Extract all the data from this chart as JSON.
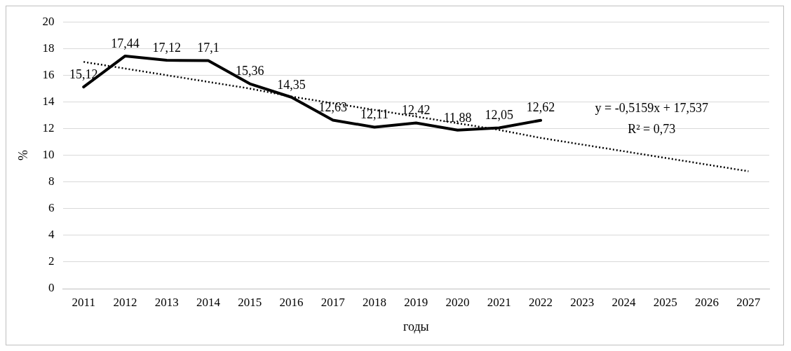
{
  "chart_data": {
    "type": "line",
    "categories": [
      "2011",
      "2012",
      "2013",
      "2014",
      "2015",
      "2016",
      "2017",
      "2018",
      "2019",
      "2020",
      "2021",
      "2022",
      "2023",
      "2024",
      "2025",
      "2026",
      "2027"
    ],
    "series": [
      {
        "color": "#000000",
        "values": [
          15.12,
          17.44,
          17.12,
          17.1,
          15.36,
          14.35,
          12.63,
          12.11,
          12.42,
          11.88,
          12.05,
          12.62,
          null,
          null,
          null,
          null,
          null
        ],
        "value_labels": [
          "15,12",
          "17,44",
          "17,12",
          "17,1",
          "15,36",
          "14,35",
          "12,63",
          "12,11",
          "12,42",
          "11,88",
          "12,05",
          "12,62",
          null,
          null,
          null,
          null,
          null
        ],
        "line_style": "solid"
      },
      {
        "type": "line",
        "color": "#000000",
        "values": [
          17.0,
          16.5,
          16.0,
          15.5,
          15.0,
          14.4,
          13.9,
          13.4,
          12.9,
          12.4,
          11.9,
          11.3,
          10.8,
          10.3,
          9.8,
          9.3,
          8.8
        ],
        "line_style": "dotted"
      }
    ],
    "xlabel": "годы",
    "ylabel": "%",
    "ylim": [
      0,
      20
    ],
    "yticks": [
      0,
      2,
      4,
      6,
      8,
      10,
      12,
      14,
      16,
      18,
      20
    ],
    "grid": "y",
    "legend": false,
    "marker": "none",
    "annotations": [
      "y = -0,5159x + 17,537",
      "R² = 0,73"
    ]
  }
}
